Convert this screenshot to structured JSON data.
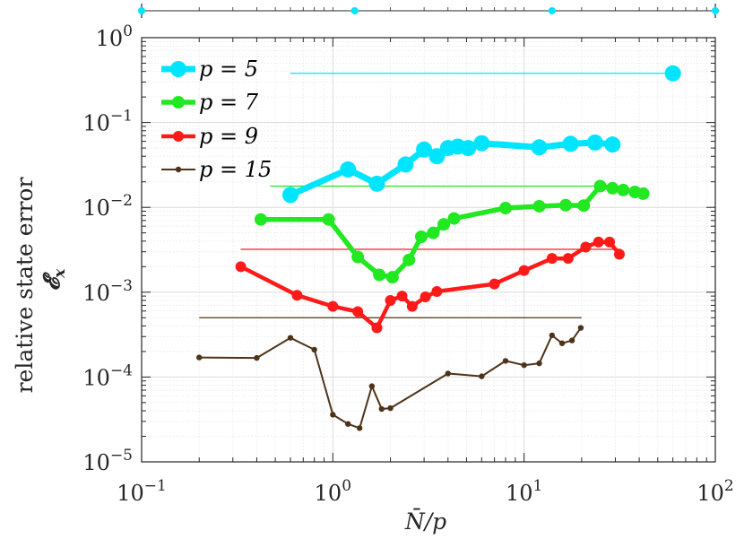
{
  "chart_data": {
    "type": "line",
    "xscale": "log",
    "yscale": "log",
    "xlim": [
      0.1,
      100
    ],
    "ylim": [
      1e-05,
      1
    ],
    "xlabel": "N̄/p",
    "ylabel_text": "relative state error",
    "ylabel_symbol": "𝓔",
    "ylabel_subscript": "x",
    "grid": true,
    "legend_position": "top-left",
    "xticks": [
      {
        "value": 0.1,
        "base": "10",
        "exp": "−1"
      },
      {
        "value": 1,
        "base": "10",
        "exp": "0"
      },
      {
        "value": 10,
        "base": "10",
        "exp": "1"
      },
      {
        "value": 100,
        "base": "10",
        "exp": "2"
      }
    ],
    "yticks": [
      {
        "value": 1,
        "base": "10",
        "exp": "0"
      },
      {
        "value": 0.1,
        "base": "10",
        "exp": "−1"
      },
      {
        "value": 0.01,
        "base": "10",
        "exp": "−2"
      },
      {
        "value": 0.001,
        "base": "10",
        "exp": "−3"
      },
      {
        "value": 0.0001,
        "base": "10",
        "exp": "−4"
      },
      {
        "value": 1e-05,
        "base": "10",
        "exp": "−5"
      }
    ],
    "top_markers": [
      0.1,
      1.3,
      14,
      100
    ],
    "series": [
      {
        "name": "p = 5",
        "color": "#00e5ff",
        "line_width": 7,
        "marker_radius": 9,
        "x": [
          0.6,
          1.2,
          1.7,
          2.4,
          3.0,
          3.5,
          4.0,
          4.5,
          5.1,
          6.0,
          12,
          17.5,
          23.5,
          29
        ],
        "y": [
          0.014,
          0.028,
          0.019,
          0.032,
          0.048,
          0.04,
          0.05,
          0.052,
          0.05,
          0.057,
          0.051,
          0.056,
          0.058,
          0.055
        ]
      },
      {
        "name": "p = 7",
        "color": "#22e822",
        "line_width": 5.5,
        "marker_radius": 7,
        "x": [
          0.42,
          0.95,
          1.35,
          1.75,
          2.05,
          2.5,
          2.9,
          3.35,
          3.8,
          4.3,
          8.0,
          12.0,
          16.5,
          20.5,
          25,
          29,
          33,
          38,
          42
        ],
        "y": [
          0.0072,
          0.0072,
          0.0026,
          0.0016,
          0.0015,
          0.0024,
          0.0045,
          0.005,
          0.0063,
          0.0074,
          0.0098,
          0.0103,
          0.0106,
          0.0105,
          0.0178,
          0.0168,
          0.016,
          0.0152,
          0.0145
        ]
      },
      {
        "name": "p = 9",
        "color": "#ff1a1a",
        "line_width": 4.5,
        "marker_radius": 6,
        "x": [
          0.33,
          0.65,
          1.0,
          1.35,
          1.7,
          2.0,
          2.3,
          2.6,
          3.05,
          3.5,
          7.0,
          10.0,
          14.0,
          17.0,
          21.0,
          24.5,
          28.0,
          31.5
        ],
        "y": [
          0.002,
          0.00092,
          0.00068,
          0.00059,
          0.00038,
          0.0008,
          0.0009,
          0.00068,
          0.00088,
          0.00102,
          0.00125,
          0.0018,
          0.0025,
          0.0025,
          0.0034,
          0.0039,
          0.0039,
          0.0028
        ]
      },
      {
        "name": "p = 15",
        "color": "#4d3319",
        "line_width": 2,
        "marker_radius": 3.2,
        "x": [
          0.2,
          0.4,
          0.6,
          0.8,
          1.0,
          1.2,
          1.38,
          1.6,
          1.8,
          2.0,
          4.0,
          6.0,
          8.0,
          10.0,
          12.0,
          14.0,
          15.8,
          17.8,
          19.8
        ],
        "y": [
          0.00017,
          0.000168,
          0.00029,
          0.00021,
          3.6e-05,
          2.8e-05,
          2.5e-05,
          7.8e-05,
          4.2e-05,
          4.3e-05,
          0.00011,
          0.000102,
          0.000155,
          0.000138,
          0.000145,
          0.00031,
          0.00025,
          0.00027,
          0.00038
        ]
      }
    ],
    "reference_lines": [
      {
        "color": "#00e5ff",
        "x": [
          0.6,
          60
        ],
        "y": [
          0.38,
          0.38
        ],
        "end_marker": true
      },
      {
        "color": "#22e822",
        "x": [
          0.47,
          30
        ],
        "y": [
          0.0178,
          0.0178
        ],
        "end_marker": false
      },
      {
        "color": "#ff1a1a",
        "x": [
          0.33,
          32
        ],
        "y": [
          0.0032,
          0.0032
        ],
        "end_marker": false
      },
      {
        "color": "#4d3319",
        "x": [
          0.2,
          20
        ],
        "y": [
          0.0005,
          0.0005
        ],
        "end_marker": false
      }
    ]
  }
}
